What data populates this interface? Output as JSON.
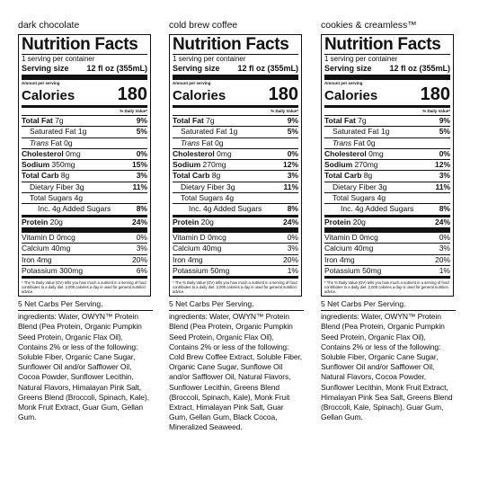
{
  "labels": [
    {
      "flavor": "dark chocolate",
      "title": "Nutrition Facts",
      "servings_per_container": "1 serving per container",
      "serving_size_label": "Serving size",
      "serving_size_value": "12 fl oz (355mL)",
      "amount_per_serving": "Amount per serving",
      "calories_label": "Calories",
      "calories": "180",
      "dv_header": "% Daily Value*",
      "total_fat_label": "Total Fat",
      "total_fat": "7g",
      "total_fat_dv": "9%",
      "sat_fat_label": "Saturated Fat",
      "sat_fat": "1g",
      "sat_fat_dv": "5%",
      "trans_fat_label": "Trans",
      "trans_fat_rest": "Fat",
      "trans_fat": "0g",
      "cholesterol_label": "Cholesterol",
      "cholesterol": "0mg",
      "cholesterol_dv": "0%",
      "sodium_label": "Sodium",
      "sodium": "350mg",
      "sodium_dv": "15%",
      "carb_label": "Total Carb",
      "carb": "8g",
      "carb_dv": "3%",
      "fiber_label": "Dietary Fiber",
      "fiber": "3g",
      "fiber_dv": "11%",
      "sugars_label": "Total Sugars",
      "sugars": "4g",
      "added_sugars_label": "Inc. 4g Added Sugars",
      "added_sugars_dv": "8%",
      "protein_label": "Protein",
      "protein": "20g",
      "protein_dv": "24%",
      "vitd_label": "Vitamin D",
      "vitd": "0mcg",
      "vitd_dv": "0%",
      "calcium_label": "Calcium",
      "calcium": "40mg",
      "calcium_dv": "3%",
      "iron_label": "Iron",
      "iron": "4mg",
      "iron_dv": "20%",
      "potassium_label": "Potassium",
      "potassium": "300mg",
      "potassium_dv": "6%",
      "footnote": "* The % Daily Value (DV) tells you how much a nutrient in a serving of food contributes to a daily diet. 2,000 calories a day is used for general nutrition advice.",
      "net_carbs": "5 Net Carbs Per Serving.",
      "ingredients": "ingredients: Water, OWYN™ Protein Blend (Pea Protein, Organic Pumpkin Seed Protein, Organic Flax Oil), Contains 2% or less of the following: Soluble Fiber, Organic Cane Sugar, Sunflower Oil and/or Safflower Oil, Cocoa Powder, Sunflower Lecithin, Natural Flavors, Himalayan Pink Salt, Greens Blend (Broccoli, Spinach, Kale), Monk Fruit Extract, Guar Gum, Gellan Gum."
    },
    {
      "flavor": "cold brew coffee",
      "title": "Nutrition Facts",
      "servings_per_container": "1 serving per container",
      "serving_size_label": "Serving size",
      "serving_size_value": "12 fl oz (355mL)",
      "amount_per_serving": "Amount per serving",
      "calories_label": "Calories",
      "calories": "180",
      "dv_header": "% Daily Value*",
      "total_fat_label": "Total Fat",
      "total_fat": "7g",
      "total_fat_dv": "9%",
      "sat_fat_label": "Saturated Fat",
      "sat_fat": "1g",
      "sat_fat_dv": "5%",
      "trans_fat_label": "Trans",
      "trans_fat_rest": "Fat",
      "trans_fat": "0g",
      "cholesterol_label": "Cholesterol",
      "cholesterol": "0mg",
      "cholesterol_dv": "0%",
      "sodium_label": "Sodium",
      "sodium": "270mg",
      "sodium_dv": "12%",
      "carb_label": "Total Carb",
      "carb": "8g",
      "carb_dv": "3%",
      "fiber_label": "Dietary Fiber",
      "fiber": "3g",
      "fiber_dv": "11%",
      "sugars_label": "Total Sugars",
      "sugars": "4g",
      "added_sugars_label": "Inc. 4g Added Sugars",
      "added_sugars_dv": "8%",
      "protein_label": "Protein",
      "protein": "20g",
      "protein_dv": "24%",
      "vitd_label": "Vitamin D",
      "vitd": "0mcg",
      "vitd_dv": "0%",
      "calcium_label": "Calcium",
      "calcium": "40mg",
      "calcium_dv": "3%",
      "iron_label": "Iron",
      "iron": "4mg",
      "iron_dv": "20%",
      "potassium_label": "Potassium",
      "potassium": "50mg",
      "potassium_dv": "1%",
      "footnote": "* The % Daily Value (DV) tells you how much a nutrient in a serving of food contributes to a daily diet. 2,000 calories a day is used for general nutrition advice.",
      "net_carbs": "5 Net Carbs Per Serving.",
      "ingredients": "ingredients: Water, OWYN™ Protein Blend (Pea Protein, Organic Pumpkin Seed Protein, Organic Flax Oil), Contains 2% or less of the following: Cold Brew Coffee Extract, Soluble Fiber, Organic Cane Sugar, Sunflowe Oil and/or Safflower Oil, Natural Flavors, Sunflower Lecithin, Greens Blend (Broccoli, Spinach, Kale), Monk Fruit Extract, Himalayan Pink Salt, Guar Gum, Gellan Gum, Black Cocoa, Mineralized Seaweed."
    },
    {
      "flavor": "cookies & creamless™",
      "title": "Nutrition Facts",
      "servings_per_container": "1 serving per container",
      "serving_size_label": "Serving size",
      "serving_size_value": "12 fl oz (355mL)",
      "amount_per_serving": "Amount per serving",
      "calories_label": "Calories",
      "calories": "180",
      "dv_header": "% Daily Value*",
      "total_fat_label": "Total Fat",
      "total_fat": "7g",
      "total_fat_dv": "9%",
      "sat_fat_label": "Saturated Fat",
      "sat_fat": "1g",
      "sat_fat_dv": "5%",
      "trans_fat_label": "Trans",
      "trans_fat_rest": "Fat",
      "trans_fat": "0g",
      "cholesterol_label": "Cholesterol",
      "cholesterol": "0mg",
      "cholesterol_dv": "0%",
      "sodium_label": "Sodium",
      "sodium": "270mg",
      "sodium_dv": "12%",
      "carb_label": "Total Carb",
      "carb": "8g",
      "carb_dv": "3%",
      "fiber_label": "Dietary Fiber",
      "fiber": "3g",
      "fiber_dv": "11%",
      "sugars_label": "Total Sugars",
      "sugars": "4g",
      "added_sugars_label": "Inc. 4g Added Sugars",
      "added_sugars_dv": "8%",
      "protein_label": "Protein",
      "protein": "20g",
      "protein_dv": "24%",
      "vitd_label": "Vitamin D",
      "vitd": "0mcg",
      "vitd_dv": "0%",
      "calcium_label": "Calcium",
      "calcium": "40mg",
      "calcium_dv": "3%",
      "iron_label": "Iron",
      "iron": "4mg",
      "iron_dv": "20%",
      "potassium_label": "Potassium",
      "potassium": "50mg",
      "potassium_dv": "1%",
      "footnote": "* The % Daily Value (DV) tells you how much a nutrient in a serving of food contributes to a daily diet. 2,000 calories a day is used for general nutrition advice.",
      "net_carbs": "5 Net Carbs Per Serving.",
      "ingredients": "ingredients: Water, OWYN™ Protein Blend (Pea Protein, Organic Pumpkin Seed Protein, Organic Flax Oil), Contains 2% or less of the following: Soluble Fiber, Organic Cane Sugar, Sunflower Oil and/or Safflower Oil, Natural Flavors, Cocoa Powder, Sunflower Lecithin, Monk Fruit Extract, Himalayan Pink Sea Salt, Greens Blend (Broccoli, Kale, Spinach), Guar Gum, Gellan Gum."
    }
  ]
}
